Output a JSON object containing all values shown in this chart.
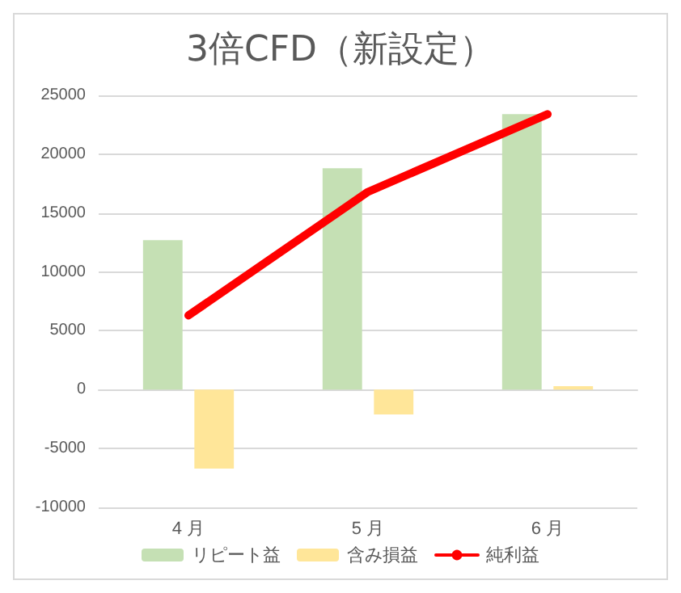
{
  "chart_data": {
    "type": "bar",
    "title": "3倍CFD（新設定）",
    "categories": [
      "4 月",
      "5 月",
      "6 月"
    ],
    "series": [
      {
        "name": "リピート益",
        "color": "#c5e0b4",
        "values": [
          12700,
          18800,
          23400
        ]
      },
      {
        "name": "含み損益",
        "color": "#ffe699",
        "values": [
          -6700,
          -2100,
          300
        ]
      },
      {
        "name": "純利益",
        "type": "line",
        "color": "#ff0000",
        "values": [
          6300,
          16800,
          23400
        ]
      }
    ],
    "ylim": [
      -10000,
      25000
    ],
    "yticks": [
      -10000,
      -5000,
      0,
      5000,
      10000,
      15000,
      20000,
      25000
    ],
    "grid": "y",
    "legend": "bottom",
    "marker": "none"
  }
}
